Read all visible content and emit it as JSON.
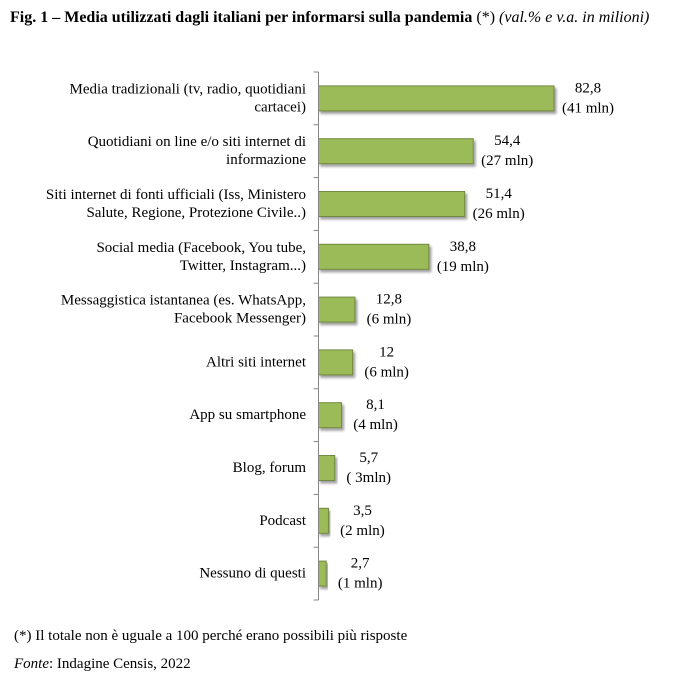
{
  "figure": {
    "title_bold": "Fig. 1 – Media utilizzati dagli italiani per informarsi sulla pandemia",
    "title_marker": "(*)",
    "title_unit": "(val.% e v.a. in milioni)"
  },
  "chart_data": {
    "type": "bar",
    "orientation": "horizontal",
    "title": "Media utilizzati dagli italiani per informarsi sulla pandemia",
    "categories": [
      [
        "Media  tradizionali (tv, radio, quotidiani",
        "cartacei)"
      ],
      [
        "Quotidiani on line e/o siti internet di",
        "informazione"
      ],
      [
        "Siti internet di fonti ufficiali (Iss, Ministero",
        "Salute, Regione, Protezione Civile..)"
      ],
      [
        "Social media (Facebook, You tube,",
        "Twitter, Instagram...)"
      ],
      [
        "Messaggistica istantanea (es. WhatsApp,",
        "Facebook Messenger)"
      ],
      [
        "Altri siti internet"
      ],
      [
        "App su smartphone"
      ],
      [
        "Blog, forum"
      ],
      [
        "Podcast"
      ],
      [
        "Nessuno di questi"
      ]
    ],
    "values": [
      82.8,
      54.4,
      51.4,
      38.8,
      12.8,
      12,
      8.1,
      5.7,
      3.5,
      2.7
    ],
    "value_labels": [
      "82,8",
      "54,4",
      "51,4",
      "38,8",
      "12,8",
      "12",
      "8,1",
      "5,7",
      "3,5",
      "2,7"
    ],
    "absolute_labels": [
      "(41 mln)",
      "(27 mln)",
      "(26 mln)",
      "(19 mln)",
      "(6 mln)",
      "(6 mln)",
      "(4 mln)",
      "( 3mln)",
      "(2 mln)",
      "(1 mln)"
    ],
    "xlim": [
      0,
      100
    ],
    "xlabel": "",
    "ylabel": "",
    "grid": false,
    "bar_color": "#9bbb59",
    "bar_border_color": "#71893f",
    "axis_color": "#868686"
  },
  "footnote": {
    "note": "(*) Il totale non è uguale a 100 perché erano possibili più risposte",
    "source_label": "Fonte",
    "source_text": ": Indagine Censis, 2022"
  }
}
